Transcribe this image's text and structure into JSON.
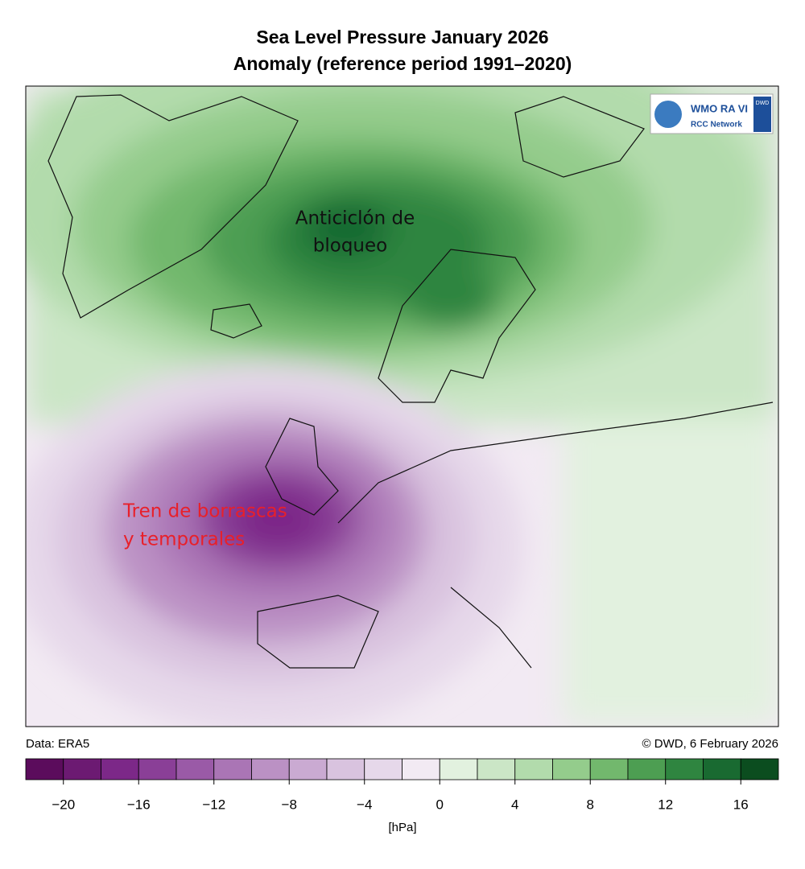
{
  "title": [
    "Sea Level Pressure January 2026",
    "Anomaly (reference period 1991–2020)"
  ],
  "annotations": {
    "high": [
      "Anticiclón de",
      "bloqueo"
    ],
    "low": [
      "Tren de borrascas",
      "y temporales"
    ]
  },
  "logo": {
    "name": "WMO RA VI",
    "network": "RCC Network",
    "agency": "DWD"
  },
  "footer": {
    "source": "Data: ERA5",
    "credit": "© DWD, 6 February 2026"
  },
  "colorbar": {
    "levels": [
      -22,
      -20,
      -18,
      -16,
      -14,
      -12,
      -10,
      -8,
      -6,
      -4,
      -2,
      0,
      2,
      4,
      6,
      8,
      10,
      12,
      14,
      16,
      18
    ],
    "colors": [
      "#5b0c5c",
      "#6c1a72",
      "#7c2888",
      "#8a3f97",
      "#9a5aa7",
      "#aa75b5",
      "#bb91c4",
      "#caaad2",
      "#d9c3df",
      "#e6d8ea",
      "#f2eaf3",
      "#e2f1df",
      "#cbe6c6",
      "#b2dbac",
      "#94cc8c",
      "#72b86d",
      "#4d9e52",
      "#2f8540",
      "#196a31",
      "#0b4d1f"
    ],
    "ticks": [
      {
        "value": -20,
        "label": "−20"
      },
      {
        "value": -16,
        "label": "−16"
      },
      {
        "value": -12,
        "label": "−12"
      },
      {
        "value": -8,
        "label": "−8"
      },
      {
        "value": -4,
        "label": "−4"
      },
      0,
      4,
      8,
      12,
      16
    ],
    "unit": "[hPa]"
  }
}
